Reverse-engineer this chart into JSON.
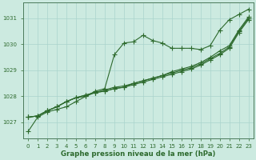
{
  "title": "Graphe pression niveau de la mer (hPa)",
  "ylim": [
    1026.4,
    1031.6
  ],
  "yticks": [
    1027,
    1028,
    1029,
    1030,
    1031
  ],
  "xlim": [
    -0.5,
    23.5
  ],
  "xticks": [
    0,
    1,
    2,
    3,
    4,
    5,
    6,
    7,
    8,
    9,
    10,
    11,
    12,
    13,
    14,
    15,
    16,
    17,
    18,
    19,
    20,
    21,
    22,
    23
  ],
  "bg_color": "#cceae0",
  "grid_color": "#aad4cc",
  "line_color": "#2d6a2d",
  "series0": [
    1026.65,
    1027.2,
    1027.4,
    1027.5,
    1027.6,
    1027.8,
    1028.0,
    1028.2,
    1028.3,
    1029.6,
    1030.05,
    1030.1,
    1030.35,
    1030.15,
    1030.05,
    1029.85,
    1029.85,
    1029.85,
    1029.8,
    1029.95,
    1030.55,
    1030.95,
    1031.15,
    1031.35
  ],
  "series1": [
    1027.2,
    1027.25,
    1027.45,
    1027.6,
    1027.8,
    1027.95,
    1028.0,
    1028.15,
    1028.2,
    1028.3,
    1028.35,
    1028.5,
    1028.6,
    1028.7,
    1028.8,
    1028.95,
    1029.05,
    1029.15,
    1029.3,
    1029.5,
    1029.75,
    1029.95,
    1030.55,
    1031.05
  ],
  "series2": [
    1027.2,
    1027.25,
    1027.45,
    1027.6,
    1027.8,
    1027.95,
    1028.05,
    1028.15,
    1028.25,
    1028.35,
    1028.4,
    1028.5,
    1028.6,
    1028.7,
    1028.8,
    1028.9,
    1029.0,
    1029.1,
    1029.25,
    1029.45,
    1029.65,
    1029.9,
    1030.5,
    1031.0
  ],
  "series3": [
    1027.2,
    1027.25,
    1027.45,
    1027.6,
    1027.8,
    1027.95,
    1028.05,
    1028.15,
    1028.2,
    1028.3,
    1028.35,
    1028.45,
    1028.55,
    1028.65,
    1028.75,
    1028.85,
    1028.95,
    1029.05,
    1029.2,
    1029.4,
    1029.6,
    1029.85,
    1030.45,
    1030.95
  ],
  "s0_marker_x": [
    0,
    1,
    2,
    3,
    4,
    5,
    6,
    7,
    8,
    9,
    10,
    11,
    12,
    13,
    14,
    15,
    16,
    17,
    18,
    19,
    20,
    21,
    22,
    23
  ],
  "s1_marker_x": [
    1,
    2,
    3,
    4,
    5,
    6,
    7,
    8,
    9,
    10,
    11,
    12,
    13,
    14,
    15,
    16,
    17,
    18,
    19,
    20,
    21,
    22,
    23
  ],
  "linewidth": 0.8,
  "marker_size": 2.2
}
